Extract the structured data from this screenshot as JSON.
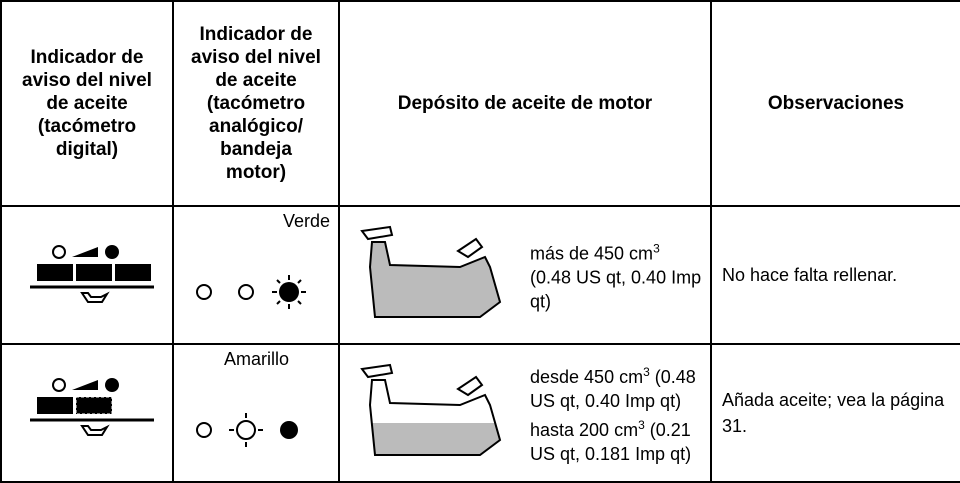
{
  "table": {
    "header": [
      [
        "Indicador de",
        "aviso del nivel",
        "de aceite",
        "(tacómetro",
        "digital)"
      ],
      [
        "Indicador de",
        "aviso del nivel",
        "de aceite",
        "(tacómetro",
        "analógico/",
        "bandeja",
        "motor)"
      ],
      [
        "Depósito de aceite de motor"
      ],
      [
        "Observaciones"
      ]
    ],
    "rows": [
      {
        "indicator_color": "Verde",
        "level_text": [
          {
            "t": "más de 450 cm"
          },
          {
            "sup": "3"
          },
          {
            "t": " (0.48 US qt, 0.40 Imp qt)"
          }
        ],
        "remark": "No hace falta rellenar."
      },
      {
        "indicator_color": "Amarillo",
        "level_text": [
          {
            "t": "desde 450 cm"
          },
          {
            "sup": "3"
          },
          {
            "t": " (0.48 US qt, 0.40 Imp qt) hasta 200 cm"
          },
          {
            "sup": "3"
          },
          {
            "t": " (0.21 US qt, 0.181 Imp qt)"
          }
        ],
        "remark": "Añada aceite; vea la página 31."
      }
    ]
  }
}
